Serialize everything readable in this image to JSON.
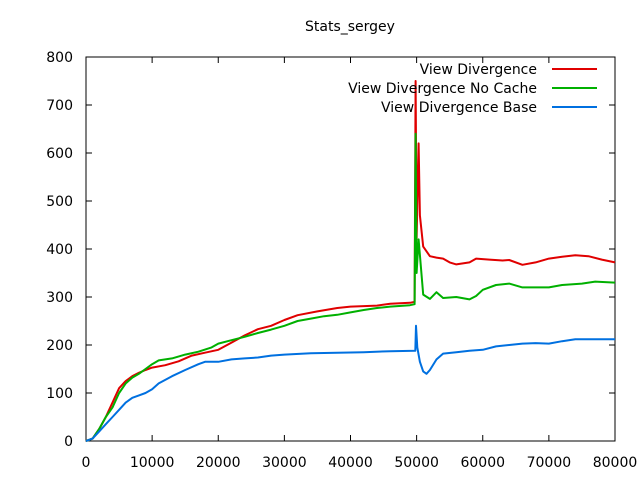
{
  "chart_data": {
    "type": "line",
    "title": "Stats_sergey",
    "xlabel": "",
    "ylabel": "",
    "xlim": [
      0,
      80000
    ],
    "ylim": [
      0,
      800
    ],
    "x_ticks": [
      0,
      10000,
      20000,
      30000,
      40000,
      50000,
      60000,
      70000,
      80000
    ],
    "y_ticks": [
      0,
      100,
      200,
      300,
      400,
      500,
      600,
      700,
      800
    ],
    "grid": false,
    "legend_position": "top-right",
    "series": [
      {
        "name": "View Divergence",
        "color": "#e00000",
        "points": [
          [
            0,
            0
          ],
          [
            1000,
            5
          ],
          [
            2000,
            25
          ],
          [
            3000,
            50
          ],
          [
            4000,
            80
          ],
          [
            5000,
            110
          ],
          [
            6000,
            125
          ],
          [
            7000,
            135
          ],
          [
            8000,
            142
          ],
          [
            9000,
            148
          ],
          [
            10000,
            153
          ],
          [
            12000,
            158
          ],
          [
            14000,
            166
          ],
          [
            16000,
            178
          ],
          [
            18000,
            184
          ],
          [
            20000,
            190
          ],
          [
            22000,
            205
          ],
          [
            24000,
            220
          ],
          [
            26000,
            233
          ],
          [
            28000,
            240
          ],
          [
            30000,
            252
          ],
          [
            32000,
            262
          ],
          [
            35000,
            270
          ],
          [
            38000,
            277
          ],
          [
            40000,
            280
          ],
          [
            44000,
            282
          ],
          [
            46000,
            286
          ],
          [
            49000,
            288
          ],
          [
            49700,
            290
          ],
          [
            49850,
            750
          ],
          [
            50000,
            420
          ],
          [
            50300,
            620
          ],
          [
            50500,
            470
          ],
          [
            51000,
            405
          ],
          [
            52000,
            385
          ],
          [
            53000,
            382
          ],
          [
            54000,
            380
          ],
          [
            55000,
            372
          ],
          [
            56000,
            368
          ],
          [
            58000,
            372
          ],
          [
            59000,
            380
          ],
          [
            61000,
            378
          ],
          [
            63000,
            376
          ],
          [
            64000,
            377
          ],
          [
            66000,
            367
          ],
          [
            68000,
            372
          ],
          [
            70000,
            380
          ],
          [
            72000,
            384
          ],
          [
            74000,
            387
          ],
          [
            76000,
            385
          ],
          [
            78000,
            378
          ],
          [
            80000,
            372
          ]
        ]
      },
      {
        "name": "View Divergence No Cache",
        "color": "#00b000",
        "points": [
          [
            0,
            0
          ],
          [
            1000,
            5
          ],
          [
            2000,
            25
          ],
          [
            3000,
            50
          ],
          [
            4000,
            70
          ],
          [
            5000,
            100
          ],
          [
            6000,
            120
          ],
          [
            7000,
            132
          ],
          [
            8000,
            140
          ],
          [
            9000,
            150
          ],
          [
            10000,
            160
          ],
          [
            11000,
            168
          ],
          [
            13000,
            172
          ],
          [
            15000,
            180
          ],
          [
            17000,
            186
          ],
          [
            19000,
            195
          ],
          [
            20000,
            203
          ],
          [
            22000,
            210
          ],
          [
            24000,
            217
          ],
          [
            26000,
            225
          ],
          [
            28000,
            232
          ],
          [
            30000,
            240
          ],
          [
            32000,
            250
          ],
          [
            34000,
            255
          ],
          [
            36000,
            260
          ],
          [
            38000,
            263
          ],
          [
            40000,
            268
          ],
          [
            42000,
            273
          ],
          [
            44000,
            277
          ],
          [
            46000,
            280
          ],
          [
            49000,
            283
          ],
          [
            49700,
            285
          ],
          [
            49850,
            640
          ],
          [
            50000,
            350
          ],
          [
            50300,
            420
          ],
          [
            51000,
            305
          ],
          [
            52000,
            296
          ],
          [
            53000,
            310
          ],
          [
            54000,
            298
          ],
          [
            56000,
            300
          ],
          [
            58000,
            295
          ],
          [
            59000,
            302
          ],
          [
            60000,
            315
          ],
          [
            62000,
            325
          ],
          [
            64000,
            328
          ],
          [
            66000,
            320
          ],
          [
            70000,
            320
          ],
          [
            72000,
            325
          ],
          [
            75000,
            328
          ],
          [
            77000,
            332
          ],
          [
            80000,
            330
          ]
        ]
      },
      {
        "name": "View Divergence Base",
        "color": "#0070e0",
        "points": [
          [
            0,
            0
          ],
          [
            1000,
            5
          ],
          [
            2000,
            20
          ],
          [
            3000,
            35
          ],
          [
            4000,
            50
          ],
          [
            5000,
            65
          ],
          [
            6000,
            80
          ],
          [
            7000,
            90
          ],
          [
            8000,
            95
          ],
          [
            9000,
            100
          ],
          [
            10000,
            108
          ],
          [
            11000,
            120
          ],
          [
            13000,
            135
          ],
          [
            15000,
            148
          ],
          [
            17000,
            160
          ],
          [
            18000,
            165
          ],
          [
            20000,
            165
          ],
          [
            22000,
            170
          ],
          [
            24000,
            172
          ],
          [
            26000,
            174
          ],
          [
            28000,
            178
          ],
          [
            30000,
            180
          ],
          [
            34000,
            183
          ],
          [
            38000,
            184
          ],
          [
            42000,
            185
          ],
          [
            46000,
            187
          ],
          [
            49800,
            188
          ],
          [
            49900,
            240
          ],
          [
            50100,
            195
          ],
          [
            50500,
            165
          ],
          [
            51000,
            145
          ],
          [
            51500,
            140
          ],
          [
            52000,
            148
          ],
          [
            53000,
            170
          ],
          [
            54000,
            182
          ],
          [
            56000,
            185
          ],
          [
            58000,
            188
          ],
          [
            60000,
            190
          ],
          [
            62000,
            197
          ],
          [
            64000,
            200
          ],
          [
            66000,
            203
          ],
          [
            68000,
            204
          ],
          [
            70000,
            203
          ],
          [
            72000,
            208
          ],
          [
            74000,
            212
          ],
          [
            80000,
            212
          ]
        ]
      }
    ]
  }
}
